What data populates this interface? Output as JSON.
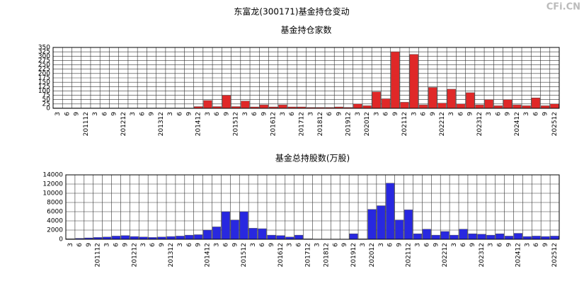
{
  "title": "东富龙(300171)基金持仓变动",
  "watermark": "CFi.CN",
  "chart_data": [
    {
      "type": "bar",
      "title": "基金持仓家数",
      "categories": [
        "3",
        "6",
        "9",
        "201112",
        "3",
        "6",
        "9",
        "201212",
        "3",
        "6",
        "9",
        "201312",
        "3",
        "6",
        "9",
        "201412",
        "3",
        "6",
        "9",
        "201512",
        "3",
        "6",
        "9",
        "201612",
        "3",
        "6",
        "201712",
        "3",
        "201812",
        "6",
        "9",
        "201912",
        "3",
        "202012",
        "3",
        "6",
        "9",
        "202112",
        "3",
        "6",
        "9",
        "202212",
        "3",
        "6",
        "9",
        "202312",
        "3",
        "6",
        "9",
        "202412",
        "3",
        "6",
        "9",
        "202512"
      ],
      "values": [
        2,
        2,
        2,
        2,
        2,
        2,
        2,
        2,
        2,
        2,
        2,
        2,
        2,
        2,
        2,
        10,
        45,
        10,
        75,
        10,
        42,
        8,
        20,
        8,
        20,
        8,
        8,
        5,
        5,
        5,
        8,
        5,
        25,
        15,
        95,
        55,
        325,
        35,
        310,
        20,
        120,
        30,
        110,
        25,
        90,
        20,
        50,
        15,
        50,
        20,
        15,
        60,
        15,
        25
      ],
      "color": "#e02828",
      "ylim": [
        0,
        350
      ],
      "yticks": [
        0,
        25,
        50,
        75,
        100,
        125,
        150,
        175,
        200,
        225,
        250,
        275,
        300,
        325,
        350
      ],
      "grid": true
    },
    {
      "type": "bar",
      "title": "基金总持股数(万股)",
      "categories": [
        "3",
        "6",
        "9",
        "201112",
        "3",
        "6",
        "9",
        "201212",
        "3",
        "6",
        "9",
        "201312",
        "3",
        "6",
        "9",
        "201412",
        "3",
        "6",
        "9",
        "201512",
        "3",
        "6",
        "9",
        "201612",
        "3",
        "6",
        "201712",
        "3",
        "201812",
        "6",
        "9",
        "201912",
        "3",
        "202012",
        "3",
        "6",
        "9",
        "202112",
        "3",
        "6",
        "9",
        "202212",
        "3",
        "6",
        "9",
        "202312",
        "3",
        "6",
        "9",
        "202412",
        "3",
        "6",
        "9",
        "202512"
      ],
      "values": [
        100,
        200,
        300,
        400,
        500,
        700,
        800,
        600,
        500,
        400,
        500,
        600,
        700,
        900,
        1000,
        2000,
        2700,
        6000,
        4200,
        6000,
        2400,
        2300,
        900,
        800,
        500,
        900,
        100,
        50,
        50,
        50,
        50,
        1200,
        100,
        6500,
        7300,
        12200,
        4200,
        6400,
        1200,
        2200,
        900,
        1700,
        900,
        2200,
        1200,
        1100,
        900,
        1200,
        700,
        1300,
        600,
        700,
        600,
        700
      ],
      "color": "#2828e0",
      "ylim": [
        0,
        14000
      ],
      "yticks": [
        0,
        2000,
        4000,
        6000,
        8000,
        10000,
        12000,
        14000
      ],
      "grid": true
    }
  ]
}
